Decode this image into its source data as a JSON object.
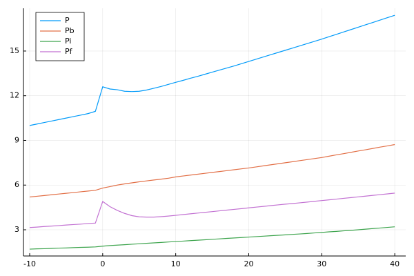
{
  "chart_data": {
    "type": "line",
    "x": [
      -10,
      -9,
      -8,
      -7,
      -6,
      -5,
      -4,
      -3,
      -2,
      -1,
      0,
      1,
      2,
      3,
      4,
      5,
      6,
      7,
      8,
      9,
      10,
      11,
      12,
      13,
      14,
      15,
      16,
      17,
      18,
      19,
      20,
      21,
      22,
      23,
      24,
      25,
      26,
      27,
      28,
      29,
      30,
      31,
      32,
      33,
      34,
      35,
      36,
      37,
      38,
      39,
      40
    ],
    "series": [
      {
        "name": "P",
        "color": "#009af9",
        "values": [
          10.0,
          10.1,
          10.2,
          10.3,
          10.4,
          10.5,
          10.6,
          10.7,
          10.8,
          10.95,
          12.6,
          12.45,
          12.4,
          12.3,
          12.28,
          12.3,
          12.38,
          12.5,
          12.62,
          12.76,
          12.9,
          13.03,
          13.17,
          13.3,
          13.44,
          13.58,
          13.72,
          13.86,
          14.0,
          14.15,
          14.3,
          14.45,
          14.6,
          14.75,
          14.9,
          15.05,
          15.2,
          15.35,
          15.5,
          15.65,
          15.8,
          15.96,
          16.12,
          16.28,
          16.44,
          16.6,
          16.76,
          16.92,
          17.08,
          17.24,
          17.4
        ]
      },
      {
        "name": "Pb",
        "color": "#e26f46",
        "values": [
          5.2,
          5.25,
          5.3,
          5.35,
          5.4,
          5.45,
          5.5,
          5.55,
          5.6,
          5.65,
          5.8,
          5.9,
          6.0,
          6.08,
          6.15,
          6.22,
          6.28,
          6.34,
          6.4,
          6.46,
          6.55,
          6.61,
          6.67,
          6.73,
          6.79,
          6.85,
          6.91,
          6.97,
          7.03,
          7.09,
          7.15,
          7.22,
          7.29,
          7.36,
          7.43,
          7.5,
          7.57,
          7.64,
          7.71,
          7.78,
          7.85,
          7.94,
          8.03,
          8.11,
          8.2,
          8.29,
          8.37,
          8.46,
          8.55,
          8.63,
          8.72
        ]
      },
      {
        "name": "Pi",
        "color": "#3da44d",
        "values": [
          1.7,
          1.72,
          1.73,
          1.75,
          1.77,
          1.78,
          1.8,
          1.82,
          1.83,
          1.85,
          1.9,
          1.94,
          1.97,
          2.0,
          2.03,
          2.06,
          2.09,
          2.12,
          2.15,
          2.18,
          2.21,
          2.24,
          2.27,
          2.3,
          2.33,
          2.36,
          2.39,
          2.42,
          2.45,
          2.48,
          2.51,
          2.54,
          2.57,
          2.6,
          2.63,
          2.66,
          2.69,
          2.72,
          2.75,
          2.79,
          2.82,
          2.86,
          2.89,
          2.93,
          2.96,
          3.0,
          3.04,
          3.08,
          3.12,
          3.16,
          3.2
        ]
      },
      {
        "name": "Pf",
        "color": "#c271d2",
        "values": [
          3.15,
          3.18,
          3.22,
          3.25,
          3.28,
          3.32,
          3.35,
          3.38,
          3.42,
          3.45,
          4.9,
          4.55,
          4.3,
          4.1,
          3.95,
          3.87,
          3.85,
          3.85,
          3.88,
          3.92,
          3.97,
          4.02,
          4.07,
          4.12,
          4.17,
          4.22,
          4.27,
          4.32,
          4.37,
          4.42,
          4.47,
          4.52,
          4.57,
          4.62,
          4.67,
          4.72,
          4.76,
          4.81,
          4.86,
          4.91,
          4.96,
          5.01,
          5.06,
          5.11,
          5.16,
          5.21,
          5.26,
          5.31,
          5.36,
          5.41,
          5.46
        ]
      }
    ],
    "xlim": [
      -10.85,
      41.5
    ],
    "xticks": [
      -10,
      0,
      10,
      20,
      30,
      40
    ],
    "ylim": [
      1.24,
      17.87
    ],
    "yticks": [
      3,
      6,
      9,
      12,
      15
    ],
    "grid": true,
    "legend": "top-left"
  }
}
